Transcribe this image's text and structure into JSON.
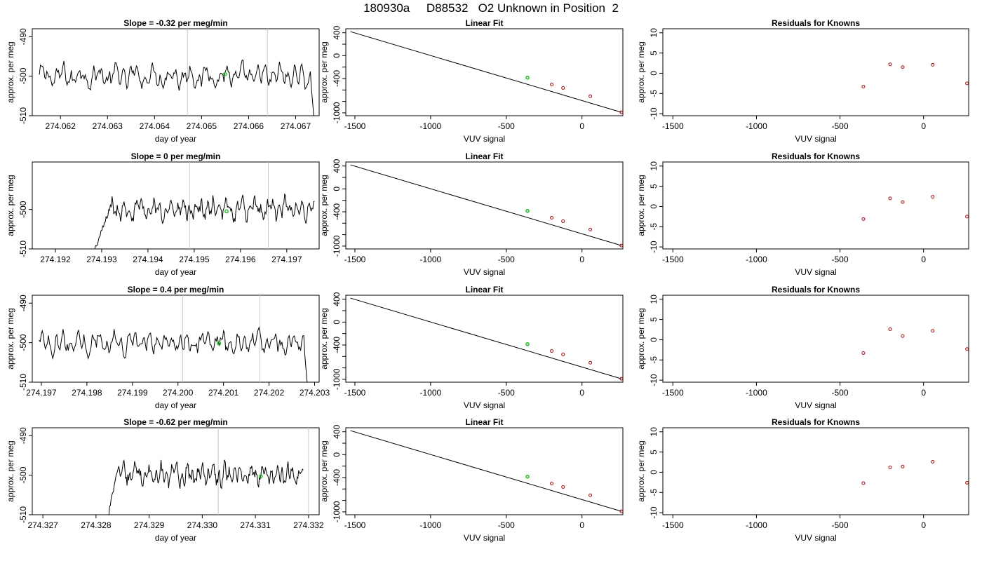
{
  "page": {
    "title": "180930a     D88532   O2 Unknown in Position  2"
  },
  "colors": {
    "trace": "#000000",
    "marker_unknown": "#00cc00",
    "marker_known": "#cc0000",
    "vline": "#c8c8c8"
  },
  "chart_data": [
    {
      "type": "line",
      "title": "Slope =  -0.32  per meg/min",
      "xlabel": "day of year",
      "ylabel": "approx. per meg",
      "xlim": [
        274.0614,
        274.0675
      ],
      "ylim": [
        -510,
        -488
      ],
      "xticks": [
        274.062,
        274.063,
        274.064,
        274.065,
        274.066,
        274.067
      ],
      "xtick_labels": [
        "274.062",
        "274.063",
        "274.064",
        "274.065",
        "274.066",
        "274.067"
      ],
      "yticks": [
        -490,
        -500,
        -510
      ],
      "ytick_labels": [
        "-490",
        "-500",
        "-510"
      ],
      "vlines": [
        274.0647,
        274.0664
      ],
      "trace_x_start": 274.06155,
      "trace_x_end": 274.06745,
      "trace_lead_in_end": null,
      "trace_end_drop": true,
      "green_point": {
        "x": 274.0655,
        "y": -499.5
      }
    },
    {
      "type": "scatter",
      "title": "Linear Fit",
      "xlabel": "VUV signal",
      "ylabel": "approx. per meg",
      "xlim": [
        -1560,
        270
      ],
      "ylim": [
        -1050,
        470
      ],
      "xticks": [
        -1500,
        -1000,
        -500,
        0
      ],
      "xtick_labels": [
        "-1500",
        "-1000",
        "-500",
        "0"
      ],
      "yticks": [
        400,
        0,
        -400,
        -1000
      ],
      "ytick_labels": [
        "400",
        "0",
        "-400",
        "-1000"
      ],
      "yminor": [
        200,
        -200,
        -600,
        -800
      ],
      "line": {
        "x": [
          -1530,
          260
        ],
        "y": [
          420,
          -990
        ]
      },
      "known_points": {
        "x": [
          -200,
          -125,
          55,
          260
        ],
        "y": [
          -505,
          -565,
          -710,
          -990
        ]
      },
      "unknown_point": {
        "x": [
          -360
        ],
        "y": [
          -385
        ]
      }
    },
    {
      "type": "scatter",
      "title": "Residuals for Knowns",
      "xlabel": "VUV signal",
      "ylabel": "approx. per meg",
      "xlim": [
        -1560,
        270
      ],
      "ylim": [
        -10.5,
        11
      ],
      "xticks": [
        -1500,
        -1000,
        -500,
        0
      ],
      "xtick_labels": [
        "-1500",
        "-1000",
        "-500",
        "0"
      ],
      "yticks": [
        10,
        5,
        0,
        -5,
        -10
      ],
      "ytick_labels": [
        "10",
        "5",
        "0",
        "-5",
        "-10"
      ],
      "points": {
        "x": [
          -360,
          -200,
          -125,
          55,
          260
        ],
        "y": [
          -3.3,
          2.2,
          1.5,
          2.1,
          -2.5
        ]
      }
    },
    {
      "type": "line",
      "title": "Slope =  0  per meg/min",
      "xlabel": "day of year",
      "ylabel": "approx. per meg",
      "xlim": [
        274.1915,
        274.1977
      ],
      "ylim": [
        -510,
        -488
      ],
      "xticks": [
        274.192,
        274.193,
        274.194,
        274.195,
        274.196,
        274.197
      ],
      "xtick_labels": [
        "274.192",
        "274.193",
        "274.194",
        "274.195",
        "274.196",
        "274.197"
      ],
      "yticks": [
        -500,
        -510
      ],
      "ytick_labels": [
        "-500",
        "-510"
      ],
      "vlines": [
        274.1949,
        274.1966
      ],
      "trace_x_start": 274.1928,
      "trace_x_end": 274.1976,
      "trace_lead_in_end": 274.1932,
      "trace_end_drop": false,
      "green_point": {
        "x": 274.1957,
        "y": -500.5
      }
    },
    {
      "type": "scatter",
      "title": "Linear Fit",
      "xlabel": "VUV signal",
      "ylabel": "approx. per meg",
      "xlim": [
        -1560,
        270
      ],
      "ylim": [
        -1050,
        470
      ],
      "xticks": [
        -1500,
        -1000,
        -500,
        0
      ],
      "xtick_labels": [
        "-1500",
        "-1000",
        "-500",
        "0"
      ],
      "yticks": [
        400,
        0,
        -400,
        -1000
      ],
      "ytick_labels": [
        "400",
        "0",
        "-400",
        "-1000"
      ],
      "yminor": [
        200,
        -200,
        -600,
        -800
      ],
      "line": {
        "x": [
          -1530,
          260
        ],
        "y": [
          420,
          -990
        ]
      },
      "known_points": {
        "x": [
          -200,
          -125,
          55,
          260
        ],
        "y": [
          -505,
          -565,
          -710,
          -990
        ]
      },
      "unknown_point": {
        "x": [
          -360
        ],
        "y": [
          -385
        ]
      }
    },
    {
      "type": "scatter",
      "title": "Residuals for Knowns",
      "xlabel": "VUV signal",
      "ylabel": "approx. per meg",
      "xlim": [
        -1560,
        270
      ],
      "ylim": [
        -10.5,
        11
      ],
      "xticks": [
        -1500,
        -1000,
        -500,
        0
      ],
      "xtick_labels": [
        "-1500",
        "-1000",
        "-500",
        "0"
      ],
      "yticks": [
        10,
        5,
        0,
        -5,
        -10
      ],
      "ytick_labels": [
        "10",
        "5",
        "0",
        "-5",
        "-10"
      ],
      "points": {
        "x": [
          -360,
          -200,
          -125,
          55,
          260
        ],
        "y": [
          -3.1,
          2.0,
          1.1,
          2.4,
          -2.5
        ]
      }
    },
    {
      "type": "line",
      "title": "Slope =  0.4  per meg/min",
      "xlabel": "day of year",
      "ylabel": "approx. per meg",
      "xlim": [
        274.1968,
        274.2031
      ],
      "ylim": [
        -510,
        -488
      ],
      "xticks": [
        274.197,
        274.198,
        274.199,
        274.2,
        274.201,
        274.202,
        274.203
      ],
      "xtick_labels": [
        "274.197",
        "274.198",
        "274.199",
        "274.200",
        "274.201",
        "274.202",
        "274.203"
      ],
      "yticks": [
        -490,
        -500,
        -510
      ],
      "ytick_labels": [
        "-490",
        "-500",
        "-510"
      ],
      "vlines": [
        274.2001,
        274.2018
      ],
      "trace_x_start": 274.19695,
      "trace_x_end": 274.2029,
      "trace_lead_in_end": null,
      "trace_end_drop": true,
      "green_point": {
        "x": 274.2009,
        "y": -500.2
      }
    },
    {
      "type": "scatter",
      "title": "Linear Fit",
      "xlabel": "VUV signal",
      "ylabel": "approx. per meg",
      "xlim": [
        -1560,
        270
      ],
      "ylim": [
        -1050,
        470
      ],
      "xticks": [
        -1500,
        -1000,
        -500,
        0
      ],
      "xtick_labels": [
        "-1500",
        "-1000",
        "-500",
        "0"
      ],
      "yticks": [
        400,
        0,
        -400,
        -1000
      ],
      "ytick_labels": [
        "400",
        "0",
        "-400",
        "-1000"
      ],
      "yminor": [
        200,
        -200,
        -600,
        -800
      ],
      "line": {
        "x": [
          -1530,
          260
        ],
        "y": [
          420,
          -990
        ]
      },
      "known_points": {
        "x": [
          -200,
          -125,
          55,
          260
        ],
        "y": [
          -505,
          -565,
          -710,
          -990
        ]
      },
      "unknown_point": {
        "x": [
          -360
        ],
        "y": [
          -385
        ]
      }
    },
    {
      "type": "scatter",
      "title": "Residuals for Knowns",
      "xlabel": "VUV signal",
      "ylabel": "approx. per meg",
      "xlim": [
        -1560,
        270
      ],
      "ylim": [
        -10.5,
        11
      ],
      "xticks": [
        -1500,
        -1000,
        -500,
        0
      ],
      "xtick_labels": [
        "-1500",
        "-1000",
        "-500",
        "0"
      ],
      "yticks": [
        10,
        5,
        0,
        -5,
        -10
      ],
      "ytick_labels": [
        "10",
        "5",
        "0",
        "-5",
        "-10"
      ],
      "points": {
        "x": [
          -360,
          -200,
          -125,
          55,
          260
        ],
        "y": [
          -3.3,
          2.6,
          0.9,
          2.2,
          -2.3
        ]
      }
    },
    {
      "type": "line",
      "title": "Slope =  -0.62  per meg/min",
      "xlabel": "day of year",
      "ylabel": "approx. per meg",
      "xlim": [
        274.3268,
        274.3322
      ],
      "ylim": [
        -510,
        -488
      ],
      "xticks": [
        274.327,
        274.328,
        274.329,
        274.33,
        274.331,
        274.332
      ],
      "xtick_labels": [
        "274.327",
        "274.328",
        "274.329",
        "274.330",
        "274.331",
        "274.332"
      ],
      "yticks": [
        -490,
        -500,
        -510
      ],
      "ytick_labels": [
        "-490",
        "-500",
        "-510"
      ],
      "vlines": [
        274.3303,
        274.332
      ],
      "trace_x_start": 274.3282,
      "trace_x_end": 274.3319,
      "trace_lead_in_end": 274.3284,
      "trace_end_drop": false,
      "green_point": {
        "x": 274.3311,
        "y": -500.3
      }
    },
    {
      "type": "scatter",
      "title": "Linear Fit",
      "xlabel": "VUV signal",
      "ylabel": "approx. per meg",
      "xlim": [
        -1560,
        270
      ],
      "ylim": [
        -1050,
        470
      ],
      "xticks": [
        -1500,
        -1000,
        -500,
        0
      ],
      "xtick_labels": [
        "-1500",
        "-1000",
        "-500",
        "0"
      ],
      "yticks": [
        400,
        0,
        -400,
        -1000
      ],
      "ytick_labels": [
        "400",
        "0",
        "-400",
        "-1000"
      ],
      "yminor": [
        200,
        -200,
        -600,
        -800
      ],
      "line": {
        "x": [
          -1530,
          260
        ],
        "y": [
          420,
          -990
        ]
      },
      "known_points": {
        "x": [
          -200,
          -125,
          55,
          260
        ],
        "y": [
          -505,
          -565,
          -710,
          -990
        ]
      },
      "unknown_point": {
        "x": [
          -360
        ],
        "y": [
          -385
        ]
      }
    },
    {
      "type": "scatter",
      "title": "Residuals for Knowns",
      "xlabel": "VUV signal",
      "ylabel": "approx. per meg",
      "xlim": [
        -1560,
        270
      ],
      "ylim": [
        -10.5,
        11
      ],
      "xticks": [
        -1500,
        -1000,
        -500,
        0
      ],
      "xtick_labels": [
        "-1500",
        "-1000",
        "-500",
        "0"
      ],
      "yticks": [
        10,
        5,
        0,
        -5,
        -10
      ],
      "points": {
        "x": [
          -360,
          -200,
          -125,
          55,
          260
        ],
        "y": [
          -2.7,
          1.2,
          1.4,
          2.6,
          -2.6
        ]
      },
      "ytick_labels": [
        "10",
        "5",
        "0",
        "-5",
        "-10"
      ]
    }
  ]
}
